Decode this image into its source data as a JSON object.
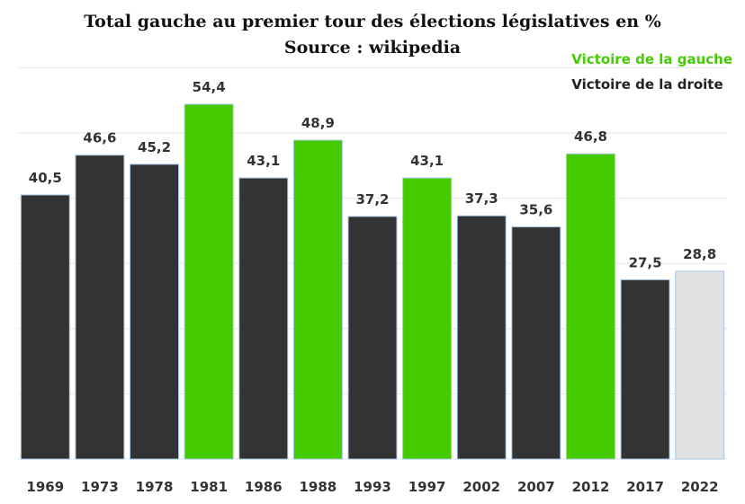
{
  "chart_data": {
    "type": "bar",
    "title": "Total gauche au premier tour des élections législatives en %",
    "subtitle": "Source : wikipedia",
    "categories": [
      "1969",
      "1973",
      "1978",
      "1981",
      "1986",
      "1988",
      "1993",
      "1997",
      "2002",
      "2007",
      "2012",
      "2017",
      "2022"
    ],
    "values": [
      40.5,
      46.6,
      45.2,
      54.4,
      43.1,
      48.9,
      37.2,
      43.1,
      37.3,
      35.6,
      46.8,
      27.5,
      28.8
    ],
    "value_labels": [
      "40,5",
      "46,6",
      "45,2",
      "54,4",
      "43,1",
      "48,9",
      "37,2",
      "43,1",
      "37,3",
      "35,6",
      "46,8",
      "27,5",
      "28,8"
    ],
    "winner": [
      "droite",
      "droite",
      "droite",
      "gauche",
      "droite",
      "gauche",
      "droite",
      "gauche",
      "droite",
      "droite",
      "gauche",
      "droite",
      "en cours"
    ],
    "ylim": [
      0,
      60
    ],
    "grid": true,
    "legend_placement": "top-right",
    "legend": [
      {
        "label": "Victoire de la gauche",
        "key": "gauche"
      },
      {
        "label": "Victoire de la droite",
        "key": "droite"
      }
    ],
    "colors": {
      "gauche": "#44cc00",
      "droite": "#333333",
      "en cours": "#e3e1e1",
      "grid": "#e6e6e6",
      "bar_outline": "#a8c8e8",
      "text": "#333333"
    }
  }
}
